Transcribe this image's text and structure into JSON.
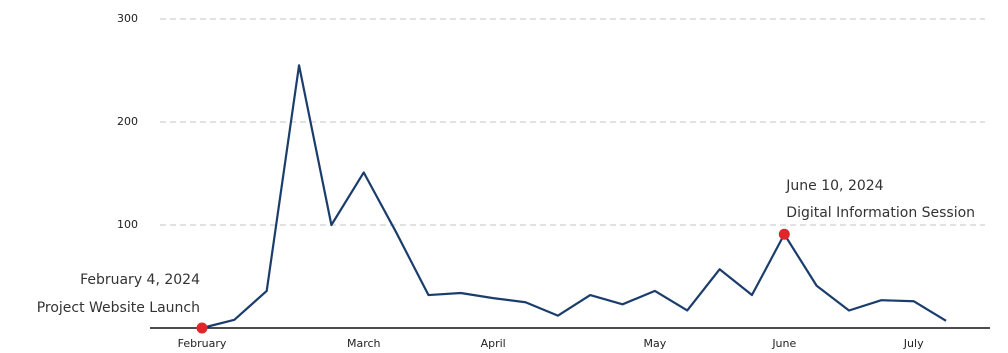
{
  "chart_data": {
    "type": "line",
    "categories": [
      "February",
      null,
      null,
      null,
      null,
      "March",
      null,
      null,
      null,
      "April",
      null,
      null,
      null,
      null,
      "May",
      null,
      null,
      null,
      "June",
      null,
      null,
      null,
      "July",
      null
    ],
    "series": [
      {
        "color": "#1b3d6b",
        "values": [
          0,
          8,
          36,
          255,
          100,
          151,
          93,
          32,
          34,
          29,
          25,
          12,
          32,
          23,
          36,
          17,
          57,
          32,
          91,
          41,
          17,
          27,
          26,
          7
        ]
      }
    ],
    "ylim": [
      0,
      300
    ],
    "yticks": [
      100,
      200,
      300
    ],
    "grid": true,
    "marker_color": "#e0262b",
    "annotations": [
      {
        "index": 0,
        "date": "February 4, 2024",
        "text": "Project Website Launch",
        "align": "left"
      },
      {
        "index": 18,
        "date": "June 10, 2024",
        "text": "Digital Information Session",
        "align": "right"
      }
    ]
  }
}
